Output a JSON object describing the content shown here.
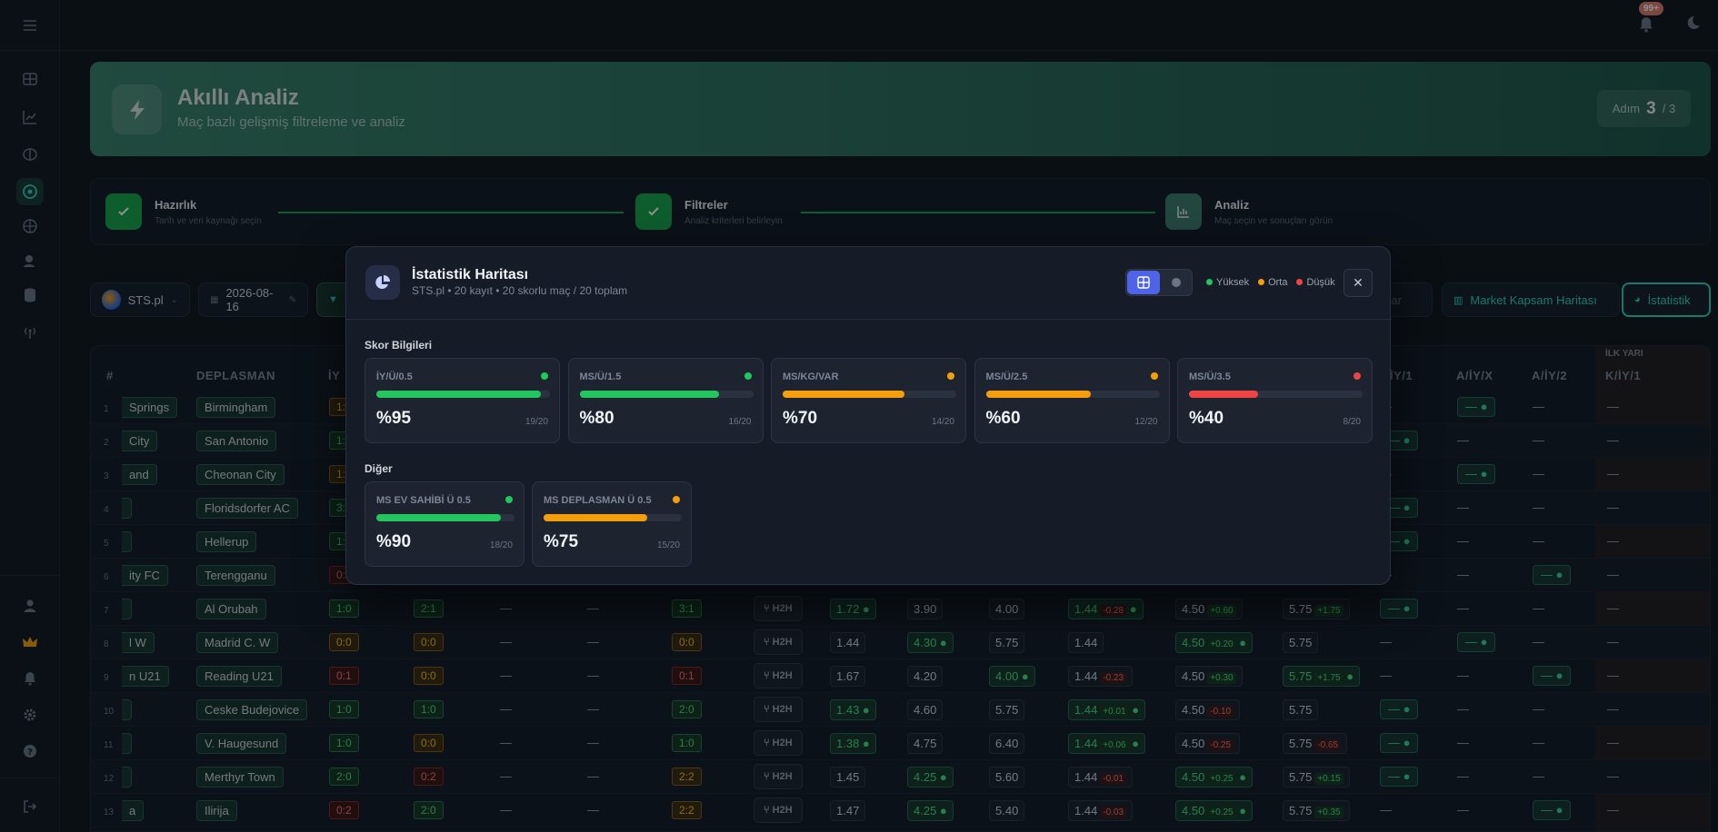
{
  "header": {
    "notif_count": "99+"
  },
  "hero": {
    "title": "Akıllı Analiz",
    "subtitle": "Maç bazlı gelişmiş filtreleme ve analiz",
    "step_label": "Adım",
    "step_current": "3",
    "step_total": "/ 3"
  },
  "steps": [
    {
      "title": "Hazırlık",
      "subtitle": "Tarih ve veri kaynağı seçin"
    },
    {
      "title": "Filtreler",
      "subtitle": "Analiz kriterleri belirleyin"
    },
    {
      "title": "Analiz",
      "subtitle": "Maç seçin ve sonuçları görün"
    }
  ],
  "toolbar": {
    "source": "STS.pl",
    "date": "2026-08-16",
    "partial_label": "unlar",
    "market_map": "Market Kapsam Haritası",
    "stats": "İstatistik"
  },
  "table": {
    "headers": {
      "num": "#",
      "away": "DEPLASMAN",
      "iy": "İY",
      "a_iy_1": "A/İY/1",
      "a_iy_x": "A/İY/X",
      "a_iy_2": "A/İY/2",
      "first_half": "İLK YARI",
      "k_iy_1": "K/İY/1"
    },
    "rows": [
      {
        "n": "1",
        "home": "Springs",
        "away": "Birmingham",
        "iy": "1:",
        "iy_c": "o",
        "c13": "—",
        "c14": "—g",
        "c15": "—",
        "c16": "—"
      },
      {
        "n": "2",
        "home": "City",
        "away": "San Antonio",
        "iy": "1:",
        "iy_c": "g",
        "c13": "—g",
        "c14": "—",
        "c15": "—",
        "c16": "—"
      },
      {
        "n": "3",
        "home": "and",
        "away": "Cheonan City",
        "iy": "1:",
        "iy_c": "o",
        "c13": "—",
        "c14": "—g",
        "c15": "—",
        "c16": "—"
      },
      {
        "n": "4",
        "home": "",
        "away": "Floridsdorfer AC",
        "iy": "3:",
        "iy_c": "g",
        "c13": "—g",
        "c14": "—",
        "c15": "—",
        "c16": "—"
      },
      {
        "n": "5",
        "home": "",
        "away": "Hellerup",
        "iy": "1:",
        "iy_c": "g",
        "c13": "—g",
        "c14": "—",
        "c15": "—",
        "c16": "—"
      },
      {
        "n": "6",
        "home": "ity FC",
        "away": "Terengganu",
        "iy": "0:",
        "iy_c": "r",
        "c13": "—",
        "c14": "—",
        "c15": "—g",
        "c16": "—"
      },
      {
        "n": "7",
        "home": "",
        "away": "Al Orubah",
        "iy": "1:0",
        "iy_c": "g",
        "ms": "2:1",
        "ms_c": "g",
        "ft": "3:1",
        "ft_c": "g",
        "o1": "1.72",
        "o1g": true,
        "o2": "3.90",
        "o2g": false,
        "o3": "4.00",
        "o3g": false,
        "p1": "1.44",
        "p1d": "-0.28",
        "p1g": true,
        "p2": "4.50",
        "p2d": "+0.60",
        "p2g": false,
        "p3": "5.75",
        "p3d": "+1.75",
        "p3g": false,
        "c13": "—g",
        "c14": "—",
        "c15": "—",
        "c16": "—"
      },
      {
        "n": "8",
        "home": "l W",
        "away": "Madrid C. W",
        "iy": "0:0",
        "iy_c": "o",
        "ms": "0:0",
        "ms_c": "o",
        "ft": "0:0",
        "ft_c": "o",
        "o1": "1.44",
        "o1g": false,
        "o2": "4.30",
        "o2g": true,
        "o3": "5.75",
        "o3g": false,
        "p1": "1.44",
        "p1d": "",
        "p1g": false,
        "p2": "4.50",
        "p2d": "+0.20",
        "p2g": true,
        "p3": "5.75",
        "p3d": "",
        "p3g": false,
        "c13": "—",
        "c14": "—g",
        "c15": "—",
        "c16": "—"
      },
      {
        "n": "9",
        "home": "n U21",
        "away": "Reading U21",
        "iy": "0:1",
        "iy_c": "r",
        "ms": "0:0",
        "ms_c": "o",
        "ft": "0:1",
        "ft_c": "r",
        "o1": "1.67",
        "o1g": false,
        "o2": "4.20",
        "o2g": false,
        "o3": "4.00",
        "o3g": true,
        "p1": "1.44",
        "p1d": "-0.23",
        "p1g": false,
        "p2": "4.50",
        "p2d": "+0.30",
        "p2g": false,
        "p3": "5.75",
        "p3d": "+1.75",
        "p3g": true,
        "c13": "—",
        "c14": "—",
        "c15": "—g",
        "c16": "—"
      },
      {
        "n": "10",
        "home": "",
        "away": "Ceske Budejovice",
        "iy": "1:0",
        "iy_c": "g",
        "ms": "1:0",
        "ms_c": "g",
        "ft": "2:0",
        "ft_c": "g",
        "o1": "1.43",
        "o1g": true,
        "o2": "4.60",
        "o2g": false,
        "o3": "5.75",
        "o3g": false,
        "p1": "1.44",
        "p1d": "+0.01",
        "p1g": true,
        "p2": "4.50",
        "p2d": "-0.10",
        "p2g": false,
        "p3": "5.75",
        "p3d": "",
        "p3g": false,
        "c13": "—g",
        "c14": "—",
        "c15": "—",
        "c16": "—"
      },
      {
        "n": "11",
        "home": "",
        "away": "V. Haugesund",
        "iy": "1:0",
        "iy_c": "g",
        "ms": "0:0",
        "ms_c": "o",
        "ft": "1:0",
        "ft_c": "g",
        "o1": "1.38",
        "o1g": true,
        "o2": "4.75",
        "o2g": false,
        "o3": "6.40",
        "o3g": false,
        "p1": "1.44",
        "p1d": "+0.06",
        "p1g": true,
        "p2": "4.50",
        "p2d": "-0.25",
        "p2g": false,
        "p3": "5.75",
        "p3d": "-0.65",
        "p3g": false,
        "c13": "—g",
        "c14": "—",
        "c15": "—",
        "c16": "—"
      },
      {
        "n": "12",
        "home": "",
        "away": "Merthyr Town",
        "iy": "2:0",
        "iy_c": "g",
        "ms": "0:2",
        "ms_c": "r",
        "ft": "2:2",
        "ft_c": "o",
        "o1": "1.45",
        "o1g": false,
        "o2": "4.25",
        "o2g": true,
        "o3": "5.60",
        "o3g": false,
        "p1": "1.44",
        "p1d": "-0.01",
        "p1g": false,
        "p2": "4.50",
        "p2d": "+0.25",
        "p2g": true,
        "p3": "5.75",
        "p3d": "+0.15",
        "p3g": false,
        "c13": "—g",
        "c14": "—",
        "c15": "—",
        "c16": "—"
      },
      {
        "n": "13",
        "home": "a",
        "away": "Ilirija",
        "iy": "0:2",
        "iy_c": "r",
        "ms": "2:0",
        "ms_c": "g",
        "ft": "2:2",
        "ft_c": "o",
        "o1": "1.47",
        "o1g": false,
        "o2": "4.25",
        "o2g": true,
        "o3": "5.40",
        "o3g": false,
        "p1": "1.44",
        "p1d": "-0.03",
        "p1g": false,
        "p2": "4.50",
        "p2d": "+0.25",
        "p2g": true,
        "p3": "5.75",
        "p3d": "+0.35",
        "p3g": false,
        "c13": "—",
        "c14": "—",
        "c15": "—g",
        "c16": "—"
      }
    ],
    "h2h_label": "H2H"
  },
  "modal": {
    "title": "İstatistik Haritası",
    "subtitle": "STS.pl • 20 kayıt • 20 skorlu maç / 20 toplam",
    "legend": {
      "high": "Yüksek",
      "mid": "Orta",
      "low": "Düşük"
    },
    "section1": "Skor Bilgileri",
    "section2": "Diğer",
    "cards1": [
      {
        "label": "İY/Ü/0.5",
        "pct": "%95",
        "count": "19/20",
        "value": 0.95,
        "level": "high"
      },
      {
        "label": "MS/Ü/1.5",
        "pct": "%80",
        "count": "16/20",
        "value": 0.8,
        "level": "high"
      },
      {
        "label": "MS/KG/VAR",
        "pct": "%70",
        "count": "14/20",
        "value": 0.7,
        "level": "mid"
      },
      {
        "label": "MS/Ü/2.5",
        "pct": "%60",
        "count": "12/20",
        "value": 0.6,
        "level": "mid"
      },
      {
        "label": "MS/Ü/3.5",
        "pct": "%40",
        "count": "8/20",
        "value": 0.4,
        "level": "low"
      }
    ],
    "cards2": [
      {
        "label": "MS EV SAHİBİ Ü 0.5",
        "pct": "%90",
        "count": "18/20",
        "value": 0.9,
        "level": "high"
      },
      {
        "label": "MS DEPLASMAN Ü 0.5",
        "pct": "%75",
        "count": "15/20",
        "value": 0.75,
        "level": "mid"
      }
    ]
  },
  "colors": {
    "high": "#22c55e",
    "mid": "#f59e0b",
    "low": "#ef4444",
    "accent": "#2dd4bf",
    "hero": "#3b8a70"
  }
}
